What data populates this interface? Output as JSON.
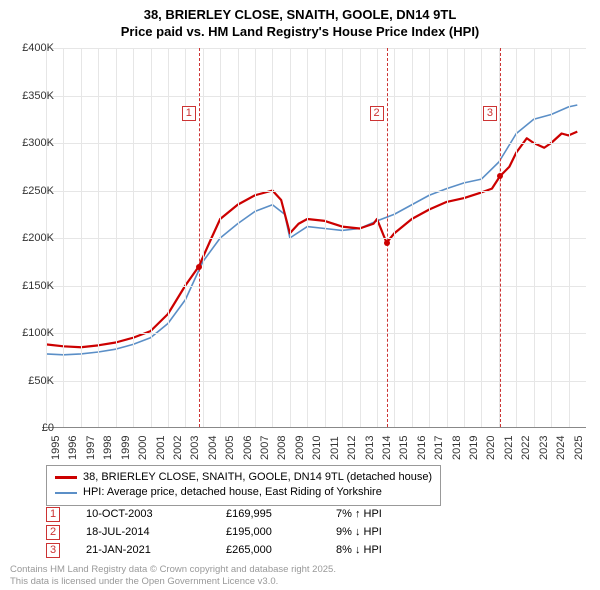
{
  "title_line1": "38, BRIERLEY CLOSE, SNAITH, GOOLE, DN14 9TL",
  "title_line2": "Price paid vs. HM Land Registry's House Price Index (HPI)",
  "chart": {
    "type": "line",
    "background_color": "#ffffff",
    "grid_color": "#e6e6e6",
    "axis_color": "#888888",
    "x_years": [
      1995,
      1996,
      1997,
      1998,
      1999,
      2000,
      2001,
      2002,
      2003,
      2004,
      2005,
      2006,
      2007,
      2008,
      2009,
      2010,
      2011,
      2012,
      2013,
      2014,
      2015,
      2016,
      2017,
      2018,
      2019,
      2020,
      2021,
      2022,
      2023,
      2024,
      2025
    ],
    "x_min": 1995,
    "x_max": 2026,
    "y_min": 0,
    "y_max": 400000,
    "y_tick_step": 50000,
    "y_tick_labels": [
      "£0",
      "£50K",
      "£100K",
      "£150K",
      "£200K",
      "£250K",
      "£300K",
      "£350K",
      "£400K"
    ],
    "series": [
      {
        "name": "price_paid",
        "label": "38, BRIERLEY CLOSE, SNAITH, GOOLE, DN14 9TL (detached house)",
        "color": "#cc0000",
        "line_width": 2.2,
        "points": [
          [
            1995,
            88000
          ],
          [
            1996,
            86000
          ],
          [
            1997,
            85000
          ],
          [
            1998,
            87000
          ],
          [
            1999,
            90000
          ],
          [
            2000,
            95000
          ],
          [
            2001,
            102000
          ],
          [
            2002,
            120000
          ],
          [
            2003,
            150000
          ],
          [
            2003.77,
            169995
          ],
          [
            2004.5,
            200000
          ],
          [
            2005,
            220000
          ],
          [
            2006,
            235000
          ],
          [
            2007,
            245000
          ],
          [
            2008,
            250000
          ],
          [
            2008.5,
            240000
          ],
          [
            2009,
            205000
          ],
          [
            2009.5,
            215000
          ],
          [
            2010,
            220000
          ],
          [
            2011,
            218000
          ],
          [
            2012,
            212000
          ],
          [
            2013,
            210000
          ],
          [
            2013.8,
            215000
          ],
          [
            2014,
            220000
          ],
          [
            2014.55,
            195000
          ],
          [
            2015,
            205000
          ],
          [
            2016,
            220000
          ],
          [
            2017,
            230000
          ],
          [
            2018,
            238000
          ],
          [
            2019,
            242000
          ],
          [
            2020,
            248000
          ],
          [
            2020.6,
            252000
          ],
          [
            2021.06,
            265000
          ],
          [
            2021.6,
            275000
          ],
          [
            2022,
            290000
          ],
          [
            2022.6,
            305000
          ],
          [
            2023,
            300000
          ],
          [
            2023.6,
            295000
          ],
          [
            2024,
            300000
          ],
          [
            2024.6,
            310000
          ],
          [
            2025,
            308000
          ],
          [
            2025.5,
            312000
          ]
        ]
      },
      {
        "name": "hpi",
        "label": "HPI: Average price, detached house, East Riding of Yorkshire",
        "color": "#5b8fc7",
        "line_width": 1.6,
        "points": [
          [
            1995,
            78000
          ],
          [
            1996,
            77000
          ],
          [
            1997,
            78000
          ],
          [
            1998,
            80000
          ],
          [
            1999,
            83000
          ],
          [
            2000,
            88000
          ],
          [
            2001,
            95000
          ],
          [
            2002,
            110000
          ],
          [
            2003,
            135000
          ],
          [
            2004,
            175000
          ],
          [
            2005,
            200000
          ],
          [
            2006,
            215000
          ],
          [
            2007,
            228000
          ],
          [
            2008,
            235000
          ],
          [
            2008.7,
            225000
          ],
          [
            2009,
            200000
          ],
          [
            2010,
            212000
          ],
          [
            2011,
            210000
          ],
          [
            2012,
            208000
          ],
          [
            2013,
            210000
          ],
          [
            2014,
            218000
          ],
          [
            2015,
            225000
          ],
          [
            2016,
            235000
          ],
          [
            2017,
            245000
          ],
          [
            2018,
            252000
          ],
          [
            2019,
            258000
          ],
          [
            2020,
            262000
          ],
          [
            2021,
            280000
          ],
          [
            2022,
            310000
          ],
          [
            2023,
            325000
          ],
          [
            2024,
            330000
          ],
          [
            2025,
            338000
          ],
          [
            2025.5,
            340000
          ]
        ]
      }
    ],
    "markers": [
      {
        "id": "1",
        "x": 2003.77,
        "y": 169995,
        "badge_top": 58
      },
      {
        "id": "2",
        "x": 2014.55,
        "y": 195000,
        "badge_top": 58
      },
      {
        "id": "3",
        "x": 2021.06,
        "y": 265000,
        "badge_top": 58
      }
    ],
    "sale_dot_color": "#cc0000",
    "marker_line_color": "#cc3333"
  },
  "legend": {
    "rows": [
      {
        "color": "#cc0000",
        "width": 3,
        "label": "38, BRIERLEY CLOSE, SNAITH, GOOLE, DN14 9TL (detached house)"
      },
      {
        "color": "#5b8fc7",
        "width": 2,
        "label": "HPI: Average price, detached house, East Riding of Yorkshire"
      }
    ]
  },
  "sales_table": {
    "rows": [
      {
        "id": "1",
        "date": "10-OCT-2003",
        "price": "£169,995",
        "diff": "7%",
        "arrow": "↑",
        "suffix": "HPI"
      },
      {
        "id": "2",
        "date": "18-JUL-2014",
        "price": "£195,000",
        "diff": "9%",
        "arrow": "↓",
        "suffix": "HPI"
      },
      {
        "id": "3",
        "date": "21-JAN-2021",
        "price": "£265,000",
        "diff": "8%",
        "arrow": "↓",
        "suffix": "HPI"
      }
    ]
  },
  "attribution": {
    "line1": "Contains HM Land Registry data © Crown copyright and database right 2025.",
    "line2": "This data is licensed under the Open Government Licence v3.0."
  },
  "fontsize": {
    "title": 13,
    "axis": 11,
    "legend": 11,
    "table": 11,
    "attribution": 9.5
  }
}
